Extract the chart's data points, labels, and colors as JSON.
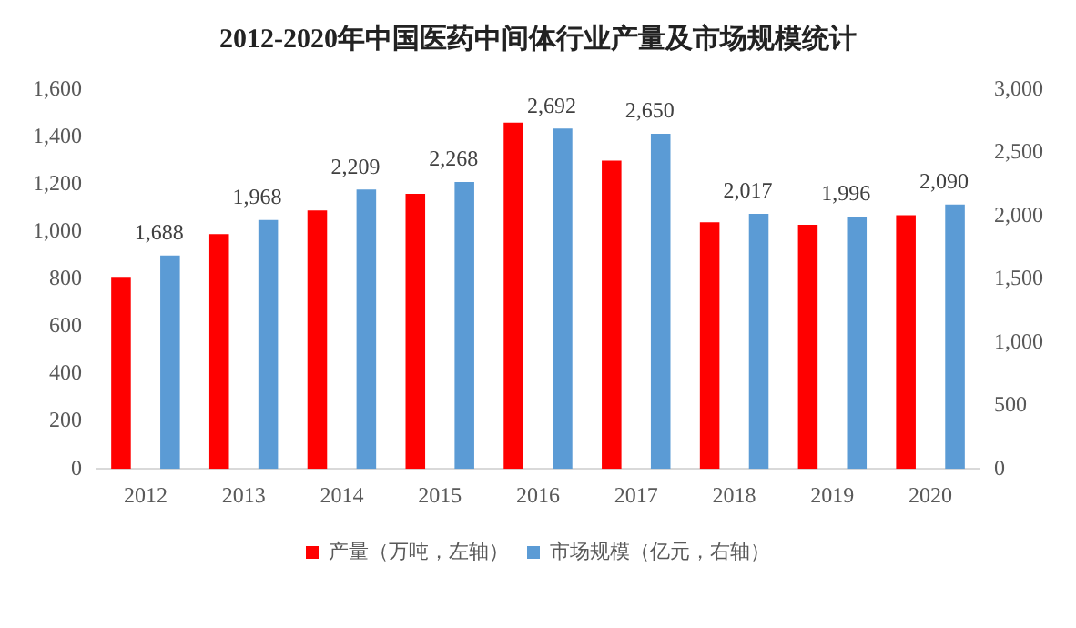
{
  "chart_data": {
    "type": "bar",
    "title": "2012-2020年中国医药中间体行业产量及市场规模统计",
    "categories": [
      "2012",
      "2013",
      "2014",
      "2015",
      "2016",
      "2017",
      "2018",
      "2019",
      "2020"
    ],
    "series": [
      {
        "name": "产量（万吨，左轴）",
        "color": "#ff0000",
        "values": [
          810,
          990,
          1090,
          1160,
          1460,
          1300,
          1040,
          1030,
          1070
        ]
      },
      {
        "name": "市场规模（亿元，右轴）",
        "color": "#5b9bd5",
        "axis": "y2",
        "values": [
          1688,
          1968,
          2209,
          2268,
          2692,
          2650,
          2017,
          1996,
          2090
        ],
        "value_labels": [
          "1,688",
          "1,968",
          "2,209",
          "2,268",
          "2,692",
          "2,650",
          "2,017",
          "1,996",
          "2,090"
        ]
      }
    ],
    "ylim": [
      0,
      1600
    ],
    "yticks": [
      0,
      {
        "value": 200,
        "label": "200"
      },
      {
        "value": 400,
        "label": "400"
      },
      {
        "value": 600,
        "label": "600"
      },
      {
        "value": 800,
        "label": "800"
      },
      {
        "value": 1000,
        "label": "1,000"
      },
      {
        "value": 1200,
        "label": "1,200"
      },
      {
        "value": 1400,
        "label": "1,400"
      },
      {
        "value": 1600,
        "label": "1,600"
      }
    ],
    "y2lim": [
      0,
      3000
    ],
    "y2ticks": [
      0,
      500,
      {
        "value": 1000,
        "label": "1,000"
      },
      {
        "value": 1500,
        "label": "1,500"
      },
      {
        "value": 2000,
        "label": "2,000"
      },
      {
        "value": 2500,
        "label": "2,500"
      },
      {
        "value": 3000,
        "label": "3,000"
      }
    ],
    "grid": false,
    "legend": "bottom"
  }
}
